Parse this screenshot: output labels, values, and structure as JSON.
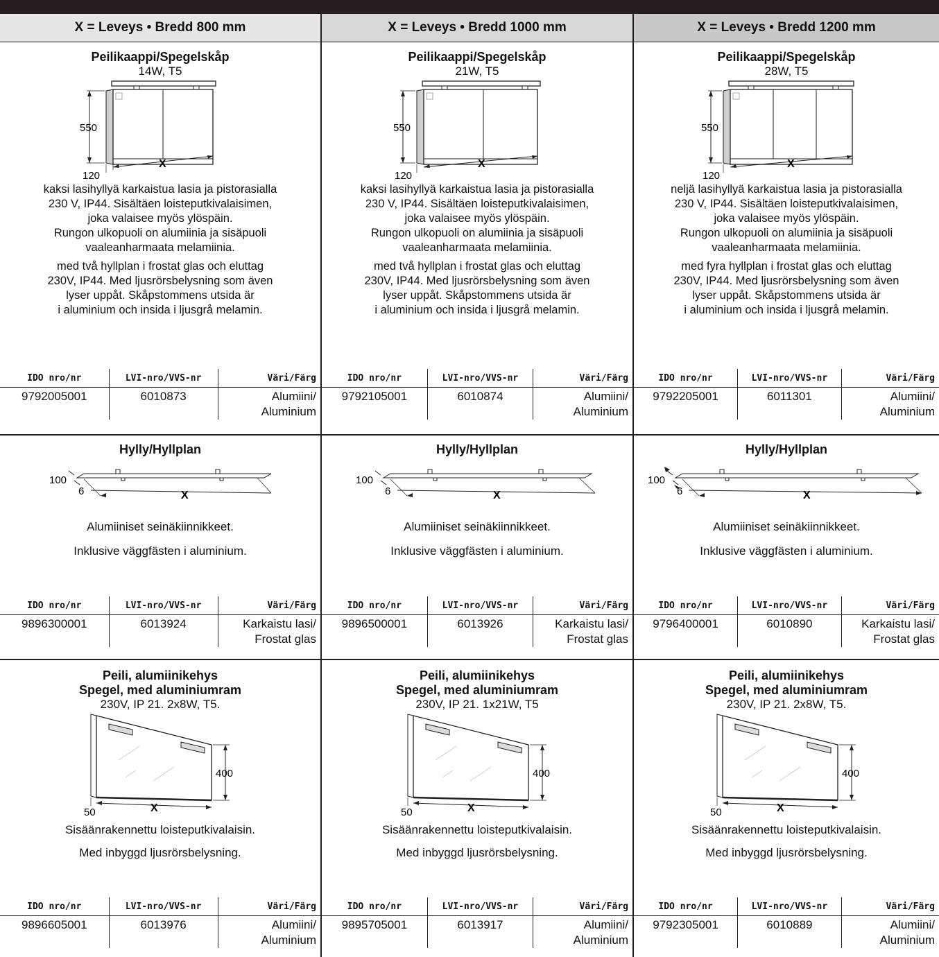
{
  "columns": [
    {
      "header": "X = Leveys • Bredd 800 mm",
      "cabinet": {
        "title": "Peilikaappi/Spegelskåp",
        "spec": "14W, T5",
        "dim_h": "550",
        "dim_d": "120",
        "dim_x": "X",
        "text_fi": "kaksi lasihyllyä karkaistua lasia ja pistorasialla\n230 V, IP44. Sisältäen loisteputkivalaisimen,\njoka valaisee myös ylöspäin.\nRungon ulkopuoli on alumiinia ja sisäpuoli\nvaaleanharmaata melamiinia.",
        "text_sv": "med två hyllplan i frostat glas och eluttag\n230V, IP44. Med ljusrörsbelysning som även\nlyser uppåt. Skåpstommens utsida är\ni aluminium och insida i ljusgrå melamin.",
        "ido": "9792005001",
        "lvi": "6010873",
        "color": "Alumiini/\nAluminium"
      },
      "shelf": {
        "title": "Hylly/Hyllplan",
        "dim_w": "100",
        "dim_t": "6",
        "dim_x": "X",
        "text_fi": "Alumiiniset seinäkiinnikkeet.",
        "text_sv": "Inklusive väggfästen i aluminium.",
        "ido": "9896300001",
        "lvi": "6013924",
        "color": "Karkaistu lasi/\nFrostat glas"
      },
      "mirror": {
        "title1": "Peili, alumiinikehys",
        "title2": "Spegel, med aluminiumram",
        "spec": "230V, IP 21. 2x8W, T5.",
        "dim_h": "400",
        "dim_d": "50",
        "dim_x": "X",
        "text_fi": "Sisäänrakennettu loisteputkivalaisin.",
        "text_sv": "Med inbyggd ljusrörsbelysning.",
        "ido": "9896605001",
        "lvi": "6013976",
        "color": "Alumiini/\nAluminium"
      }
    },
    {
      "header": "X = Leveys • Bredd 1000 mm",
      "cabinet": {
        "title": "Peilikaappi/Spegelskåp",
        "spec": "21W, T5",
        "dim_h": "550",
        "dim_d": "120",
        "dim_x": "X",
        "text_fi": "kaksi lasihyllyä karkaistua lasia ja pistorasialla\n230 V, IP44. Sisältäen loisteputkivalaisimen,\njoka valaisee myös ylöspäin.\nRungon ulkopuoli on alumiinia ja sisäpuoli\nvaaleanharmaata melamiinia.",
        "text_sv": "med två hyllplan i frostat glas och eluttag\n230V, IP44. Med ljusrörsbelysning som även\nlyser uppåt. Skåpstommens utsida är\ni aluminium och insida i ljusgrå melamin.",
        "ido": "9792105001",
        "lvi": "6010874",
        "color": "Alumiini/\nAluminium"
      },
      "shelf": {
        "title": "Hylly/Hyllplan",
        "dim_w": "100",
        "dim_t": "6",
        "dim_x": "X",
        "text_fi": "Alumiiniset seinäkiinnikkeet.",
        "text_sv": "Inklusive väggfästen i aluminium.",
        "ido": "9896500001",
        "lvi": "6013926",
        "color": "Karkaistu lasi/\nFrostat glas"
      },
      "mirror": {
        "title1": "Peili, alumiinikehys",
        "title2": "Spegel, med aluminiumram",
        "spec": "230V, IP 21. 1x21W, T5",
        "dim_h": "400",
        "dim_d": "50",
        "dim_x": "X",
        "text_fi": "Sisäänrakennettu loisteputkivalaisin.",
        "text_sv": "Med inbyggd ljusrörsbelysning.",
        "ido": "9895705001",
        "lvi": "6013917",
        "color": "Alumiini/\nAluminium"
      }
    },
    {
      "header": "X = Leveys • Bredd 1200 mm",
      "cabinet": {
        "title": "Peilikaappi/Spegelskåp",
        "spec": "28W, T5",
        "dim_h": "550",
        "dim_d": "120",
        "dim_x": "X",
        "text_fi": "neljä lasihyllyä karkaistua lasia ja pistorasialla\n230 V, IP44. Sisältäen loisteputkivalaisimen,\njoka valaisee myös ylöspäin.\nRungon ulkopuoli on alumiinia ja sisäpuoli\nvaaleanharmaata melamiinia.",
        "text_sv": "med fyra hyllplan i frostat glas och eluttag\n230V, IP44. Med ljusrörsbelysning som även\nlyser uppåt. Skåpstommens utsida är\ni aluminium och insida i ljusgrå melamin.",
        "ido": "9792205001",
        "lvi": "6011301",
        "color": "Alumiini/\nAluminium"
      },
      "shelf": {
        "title": "Hylly/Hyllplan",
        "dim_w": "100",
        "dim_t": "6",
        "dim_x": "X",
        "text_fi": "Alumiiniset seinäkiinnikkeet.",
        "text_sv": "Inklusive väggfästen i aluminium.",
        "ido": "9796400001",
        "lvi": "6010890",
        "color": "Karkaistu lasi/\nFrostat glas"
      },
      "mirror": {
        "title1": "Peili, alumiinikehys",
        "title2": "Spegel, med aluminiumram",
        "spec": "230V, IP 21. 2x8W, T5.",
        "dim_h": "400",
        "dim_d": "50",
        "dim_x": "X",
        "text_fi": "Sisäänrakennettu loisteputkivalaisin.",
        "text_sv": "Med inbyggd ljusrörsbelysning.",
        "ido": "9792305001",
        "lvi": "6010889",
        "color": "Alumiini/\nAluminium"
      }
    }
  ],
  "table_headers": {
    "ido": "IDO nro/nr",
    "lvi": "LVI-nro/VVS-nr",
    "color": "Väri/Färg"
  },
  "colors": {
    "ink": "#231f20",
    "header_800": "#e7e6e6",
    "header_1000": "#d9d8d8",
    "header_1200": "#c9c8c8"
  }
}
